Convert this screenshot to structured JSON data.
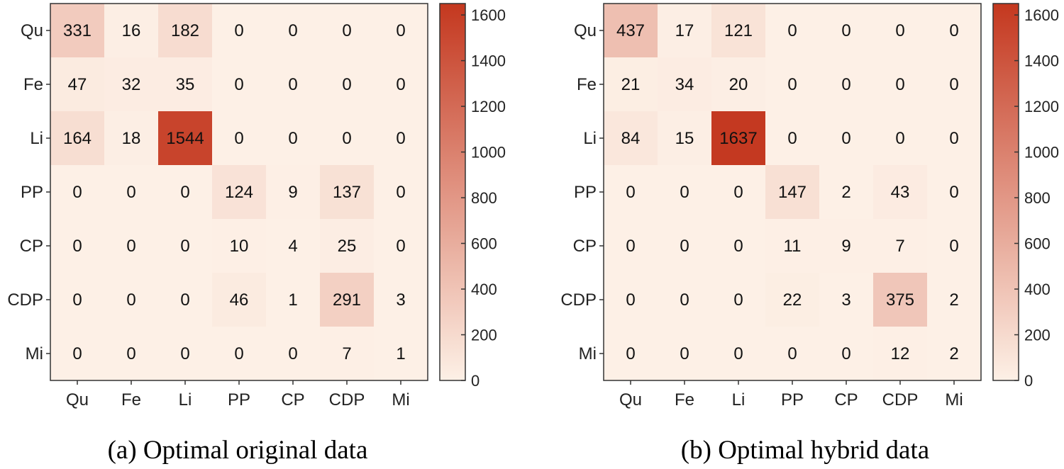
{
  "chart_data": [
    {
      "type": "heatmap",
      "title": "",
      "caption": "(a) Optimal original data",
      "row_labels": [
        "Qu",
        "Fe",
        "Li",
        "PP",
        "CP",
        "CDP",
        "Mi"
      ],
      "col_labels": [
        "Qu",
        "Fe",
        "Li",
        "PP",
        "CP",
        "CDP",
        "Mi"
      ],
      "values": [
        [
          331,
          16,
          182,
          0,
          0,
          0,
          0
        ],
        [
          47,
          32,
          35,
          0,
          0,
          0,
          0
        ],
        [
          164,
          18,
          1544,
          0,
          0,
          0,
          0
        ],
        [
          0,
          0,
          0,
          124,
          9,
          137,
          0
        ],
        [
          0,
          0,
          0,
          10,
          4,
          25,
          0
        ],
        [
          0,
          0,
          0,
          46,
          1,
          291,
          3
        ],
        [
          0,
          0,
          0,
          0,
          0,
          7,
          1
        ]
      ],
      "colorbar": {
        "min": 0,
        "max": 1650,
        "ticks": [
          0,
          200,
          400,
          600,
          800,
          1000,
          1200,
          1400,
          1600
        ]
      }
    },
    {
      "type": "heatmap",
      "title": "",
      "caption": "(b) Optimal hybrid data",
      "row_labels": [
        "Qu",
        "Fe",
        "Li",
        "PP",
        "CP",
        "CDP",
        "Mi"
      ],
      "col_labels": [
        "Qu",
        "Fe",
        "Li",
        "PP",
        "CP",
        "CDP",
        "Mi"
      ],
      "values": [
        [
          437,
          17,
          121,
          0,
          0,
          0,
          0
        ],
        [
          21,
          34,
          20,
          0,
          0,
          0,
          0
        ],
        [
          84,
          15,
          1637,
          0,
          0,
          0,
          0
        ],
        [
          0,
          0,
          0,
          147,
          2,
          43,
          0
        ],
        [
          0,
          0,
          0,
          11,
          9,
          7,
          0
        ],
        [
          0,
          0,
          0,
          22,
          3,
          375,
          2
        ],
        [
          0,
          0,
          0,
          0,
          0,
          12,
          2
        ]
      ],
      "colorbar": {
        "min": 0,
        "max": 1650,
        "ticks": [
          0,
          200,
          400,
          600,
          800,
          1000,
          1200,
          1400,
          1600
        ]
      }
    }
  ],
  "colors": {
    "low": "#fdf0e6",
    "high": "#c4381f"
  }
}
